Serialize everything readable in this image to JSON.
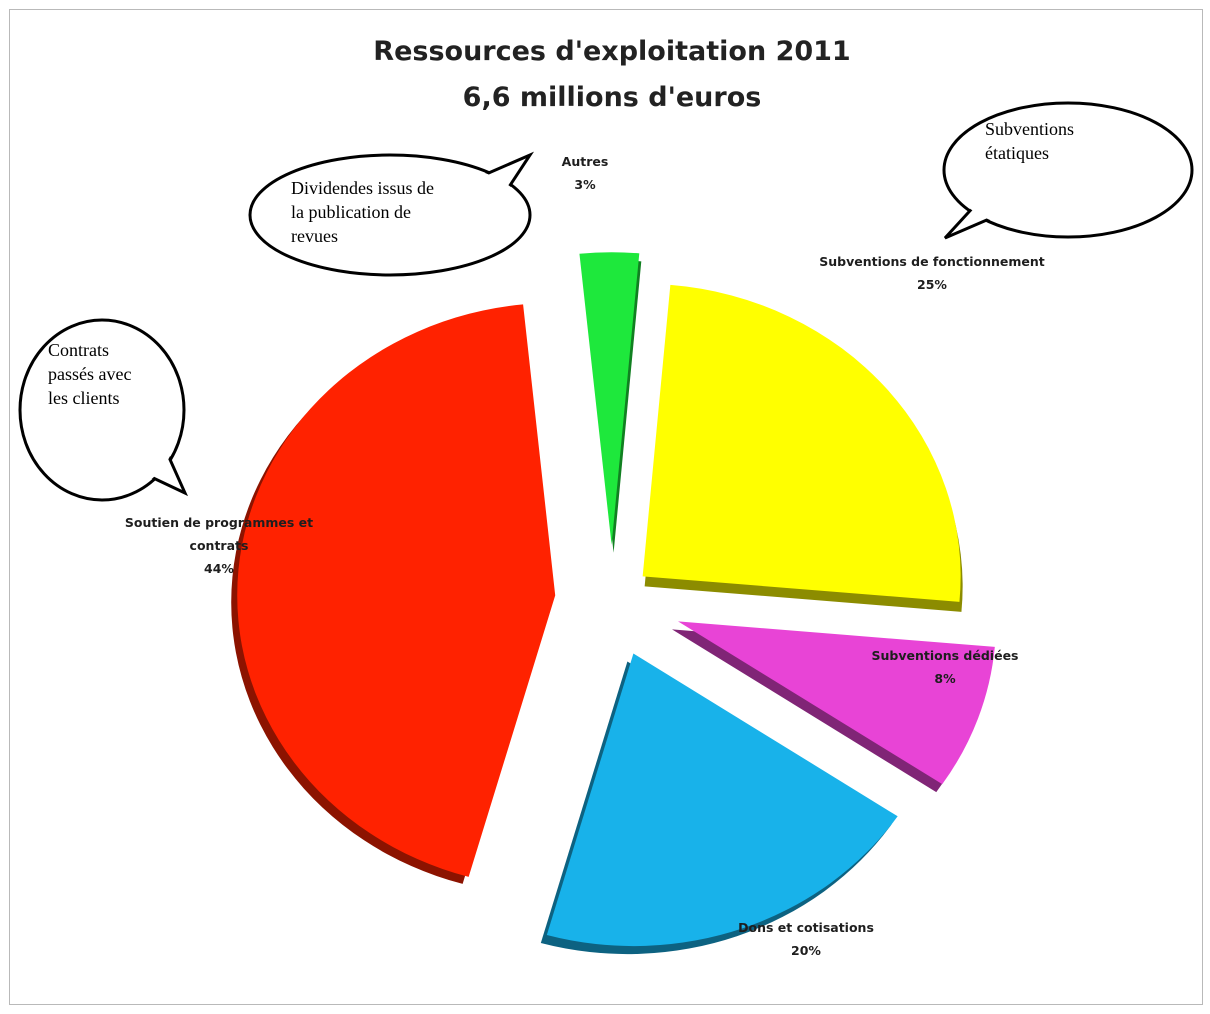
{
  "chart_data": {
    "type": "pie",
    "title": "Ressources d'exploitation 2011",
    "subtitle": "6,6 millions d'euros",
    "categories": [
      "Subventions de fonctionnement",
      "Subventions dédiées",
      "Dons et cotisations",
      "Soutien de programmes et contrats",
      "Autres"
    ],
    "values": [
      25,
      8,
      20,
      44,
      3
    ],
    "percent_labels": [
      "25%",
      "8%",
      "20%",
      "44%",
      "3%"
    ],
    "colors": [
      "#ffff00",
      "#e844d6",
      "#18b2ea",
      "#ff2200",
      "#1ee83c"
    ],
    "label_lines": [
      [
        "Subventions de fonctionnement",
        "25%"
      ],
      [
        "Subventions dédiées",
        "8%"
      ],
      [
        "Dons et cotisations",
        "20%"
      ],
      [
        "Soutien de programmes et",
        "contrats",
        "44%"
      ],
      [
        "Autres",
        "3%"
      ]
    ],
    "annotations": [
      [
        "Dividendes issus de",
        "la publication de",
        "revues"
      ],
      [
        "Subventions",
        "étatiques"
      ],
      [
        "Contrats",
        "passés avec",
        "les clients"
      ]
    ]
  }
}
